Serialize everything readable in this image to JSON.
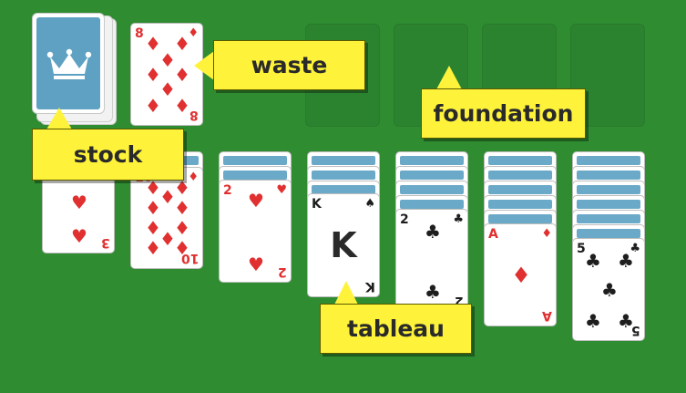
{
  "labels": {
    "stock": "stock",
    "waste": "waste",
    "foundation": "foundation",
    "tableau": "tableau"
  },
  "colors": {
    "felt": "#2f8c31",
    "card_back": "#5fa1c2",
    "callout": "#fef33a",
    "red_suit": "#e03030",
    "black_suit": "#1e1e1e"
  },
  "icons": {
    "suits": {
      "diamond": "♦",
      "heart": "♥",
      "club": "♣",
      "spade": "♠"
    },
    "stock_icon": "crown-icon"
  },
  "waste_card": {
    "rank": "8",
    "suit": "♦"
  },
  "tableau": {
    "col1": {
      "rank": "3",
      "suit": "♥"
    },
    "col2": {
      "rank": "10",
      "suit": "♦"
    },
    "col3": {
      "rank": "2",
      "suit": "♥"
    },
    "col4": {
      "rank": "K",
      "suit": "♠"
    },
    "col5": {
      "rank": "2",
      "suit": "♣"
    },
    "col6": {
      "rank": "A",
      "suit": "♦"
    },
    "col7": {
      "rank": "5",
      "suit": "♣"
    }
  }
}
